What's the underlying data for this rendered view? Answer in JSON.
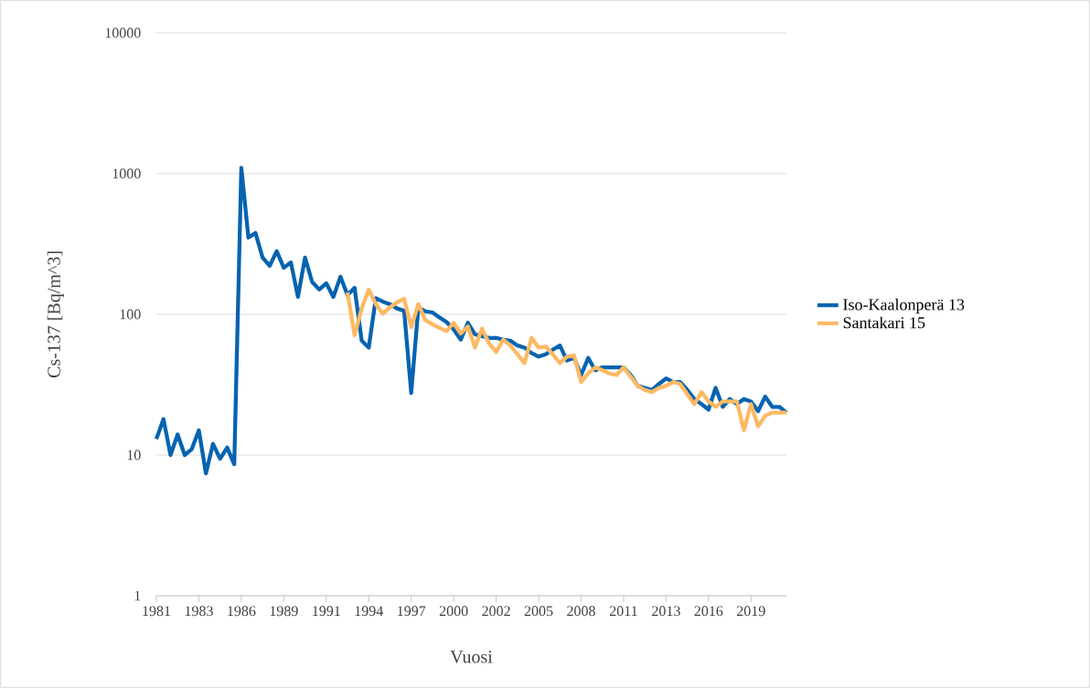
{
  "chart_data": {
    "type": "line",
    "xlabel": "Vuosi",
    "ylabel": "Cs-137 [Bq/m^3]",
    "categories": [
      "1981",
      null,
      null,
      null,
      null,
      null,
      "1983",
      null,
      null,
      null,
      null,
      null,
      "1986",
      null,
      null,
      null,
      null,
      null,
      "1989",
      null,
      null,
      null,
      null,
      null,
      "1991",
      null,
      null,
      null,
      null,
      null,
      "1994",
      null,
      null,
      null,
      null,
      null,
      "1997",
      null,
      null,
      null,
      null,
      null,
      "2000",
      null,
      null,
      null,
      null,
      null,
      "2002",
      null,
      null,
      null,
      null,
      null,
      "2005",
      null,
      null,
      null,
      null,
      null,
      "2008",
      null,
      null,
      null,
      null,
      null,
      "2011",
      null,
      null,
      null,
      null,
      null,
      "2013",
      null,
      null,
      null,
      null,
      null,
      "2016",
      null,
      null,
      null,
      null,
      null,
      "2019",
      null,
      null,
      null,
      null,
      null
    ],
    "series": [
      {
        "name": "Iso-Kaalonperä 13",
        "color": "#0563b0",
        "values": [
          13,
          18,
          10,
          14,
          10,
          11,
          15,
          7.4,
          12,
          9.4,
          11.3,
          8.6,
          1100,
          351,
          378,
          253,
          221,
          281,
          214,
          234,
          133,
          253,
          170,
          150,
          166,
          133,
          185,
          137,
          154,
          65,
          58,
          130,
          123,
          118,
          110,
          106,
          27.6,
          111,
          105,
          103,
          95,
          88,
          78,
          66,
          87,
          72,
          70,
          68,
          68,
          66,
          65,
          60,
          58,
          53,
          50,
          52,
          56,
          60,
          47,
          49,
          37,
          49,
          40,
          42,
          42,
          42,
          42,
          37,
          31,
          30,
          29,
          32,
          35,
          33,
          33,
          29,
          25,
          23,
          21,
          30,
          22,
          25,
          23,
          25,
          24,
          20.5,
          26,
          22,
          22,
          20
        ]
      },
      {
        "name": "Santakari 15",
        "color": "#fdb964",
        "values": [
          null,
          null,
          null,
          null,
          null,
          null,
          null,
          null,
          null,
          null,
          null,
          null,
          null,
          null,
          null,
          null,
          null,
          null,
          null,
          null,
          null,
          null,
          null,
          null,
          null,
          null,
          null,
          143,
          71,
          110,
          150,
          118,
          101,
          112,
          122,
          129,
          81,
          118,
          91,
          85,
          80,
          76,
          87,
          73,
          82,
          58,
          79,
          62,
          54,
          66,
          60,
          52,
          45,
          68,
          58,
          59,
          52,
          45,
          50,
          51,
          33,
          38,
          42,
          40,
          38,
          37,
          42,
          36,
          31,
          29,
          28,
          30,
          31,
          33,
          32,
          27,
          23,
          28,
          24,
          22,
          24,
          24,
          24,
          15,
          23,
          16,
          19,
          20,
          20,
          20
        ]
      }
    ],
    "log": "y",
    "ylim": [
      1,
      10000
    ],
    "yticks": [
      1,
      10,
      100,
      1000,
      10000
    ],
    "grid": "y",
    "legend": "right"
  }
}
